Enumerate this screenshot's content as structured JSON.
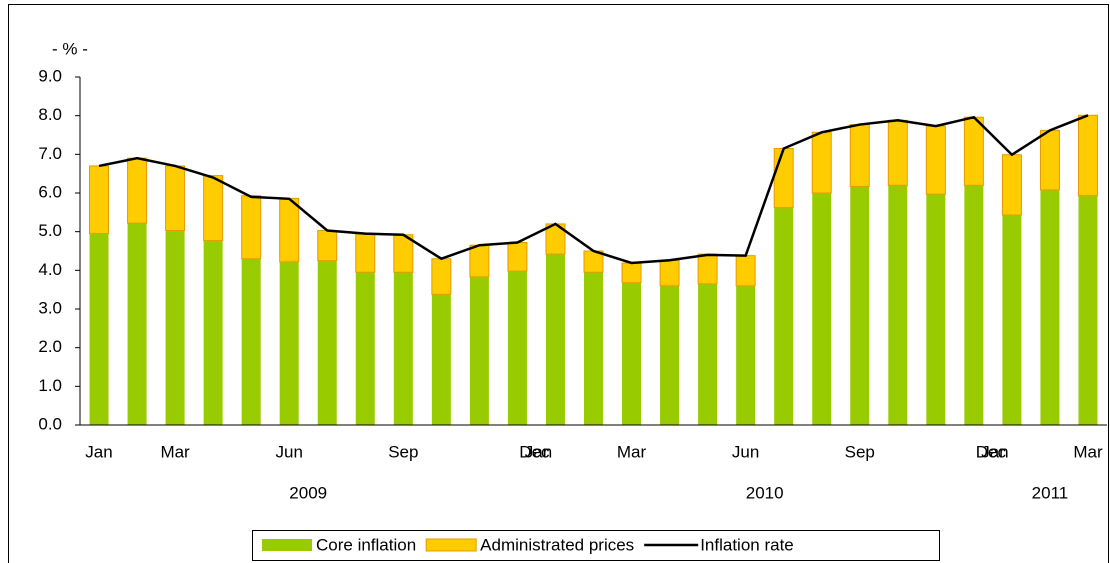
{
  "chart_data": {
    "type": "bar",
    "y_label": "- % -",
    "categories": [
      "Jan",
      null,
      "Mar",
      null,
      null,
      "Jun",
      null,
      null,
      "Sep",
      null,
      null,
      "Dec",
      "Jan",
      null,
      "Mar",
      null,
      null,
      "Jun",
      null,
      null,
      "Sep",
      null,
      null,
      "Dec",
      "Jan",
      null,
      "Mar"
    ],
    "year_groups": [
      {
        "label": "2009",
        "first": 0,
        "last": 11
      },
      {
        "label": "2010",
        "first": 12,
        "last": 23
      },
      {
        "label": "2011",
        "first": 24,
        "last": 26
      }
    ],
    "series": [
      {
        "name": "Core inflation",
        "color": "#99cc00",
        "stack": true,
        "values": [
          4.95,
          5.22,
          5.03,
          4.77,
          4.3,
          4.22,
          4.25,
          3.95,
          3.95,
          3.38,
          3.83,
          3.98,
          4.42,
          3.95,
          3.68,
          3.6,
          3.65,
          3.6,
          5.62,
          6.0,
          6.17,
          6.2,
          5.97,
          6.2,
          5.43,
          6.08,
          5.93
        ]
      },
      {
        "name": "Administrated prices",
        "color": "#ffcc00",
        "stack": true,
        "values": [
          1.75,
          1.68,
          1.67,
          1.68,
          1.63,
          1.64,
          0.78,
          1.0,
          0.97,
          0.92,
          0.82,
          0.74,
          0.78,
          0.55,
          0.51,
          0.66,
          0.77,
          0.78,
          1.53,
          1.57,
          1.6,
          1.68,
          1.76,
          1.76,
          1.56,
          1.54,
          2.08
        ]
      },
      {
        "name": "Inflation rate",
        "color": "#000000",
        "type": "line",
        "values": [
          6.7,
          6.9,
          6.7,
          6.4,
          5.9,
          5.85,
          5.03,
          4.95,
          4.92,
          4.3,
          4.65,
          4.72,
          5.2,
          4.5,
          4.19,
          4.26,
          4.4,
          4.38,
          7.15,
          7.57,
          7.77,
          7.88,
          7.73,
          7.96,
          6.99,
          7.62,
          8.01
        ]
      }
    ],
    "ylim": [
      0,
      9
    ],
    "yticks": [
      {
        "value": 0,
        "label": "0.0"
      },
      {
        "value": 1,
        "label": "1.0"
      },
      {
        "value": 2,
        "label": "2.0"
      },
      {
        "value": 3,
        "label": "3.0"
      },
      {
        "value": 4,
        "label": "4.0"
      },
      {
        "value": 5,
        "label": "5.0"
      },
      {
        "value": 6,
        "label": "6.0"
      },
      {
        "value": 7,
        "label": "7.0"
      },
      {
        "value": 8,
        "label": "8.0"
      },
      {
        "value": 9,
        "label": "9.0"
      }
    ],
    "legend": "bottom"
  }
}
